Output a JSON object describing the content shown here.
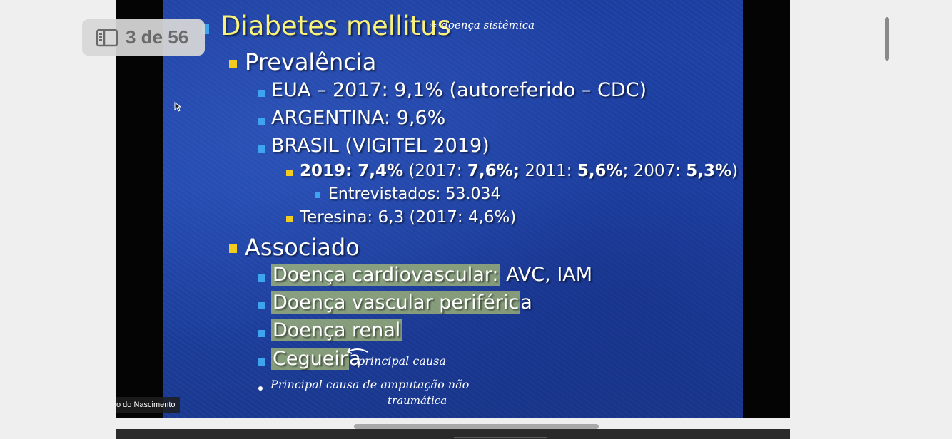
{
  "page_indicator": {
    "text": "3 de 56",
    "icon": "sidebar-panel-icon"
  },
  "slide": {
    "title": "Diabetes mellitus",
    "title_note": "≈ doença sistêmica",
    "prevalence_heading": "Prevalência",
    "prevalence_items": [
      "EUA – 2017: 9,1% (autoreferido – CDC)",
      "ARGENTINA: 9,6%",
      "BRASIL (VIGITEL 2019)"
    ],
    "brasil_line": {
      "year_label": "2019: 7,4%",
      "p1": " (2017: ",
      "v2017": "7,6%;",
      "p2": " 2011: ",
      "v2011": "5,6%",
      "p3": "; 2007: ",
      "v2007": "5,3%",
      "p4": ")"
    },
    "interviewed": "Entrevistados: 53.034",
    "teresina": "Teresina: 6,3 (2017: 4,6%)",
    "associated_heading": "Associado",
    "assoc": {
      "cardio_hl": "Doença cardiovascular:",
      "cardio_rest": " AVC, IAM",
      "vascular_hl": "Doença vascular periféric",
      "vascular_rest": "a",
      "renal": "Doença renal",
      "blind_hl": "Cegueir",
      "blind_rest": "a"
    },
    "handwritten_cause": "principal causa",
    "handwritten_line1": "Principal causa de amputação não",
    "handwritten_line2": "traumática"
  },
  "participant_name": "o do Nascimento",
  "colors": {
    "slide_blue": "#1e44ab",
    "title_yellow": "#f8f27a",
    "bullet_yellow": "#f2cd1f",
    "bullet_blue": "#3fa4f0",
    "highlight": "#dcec64"
  }
}
